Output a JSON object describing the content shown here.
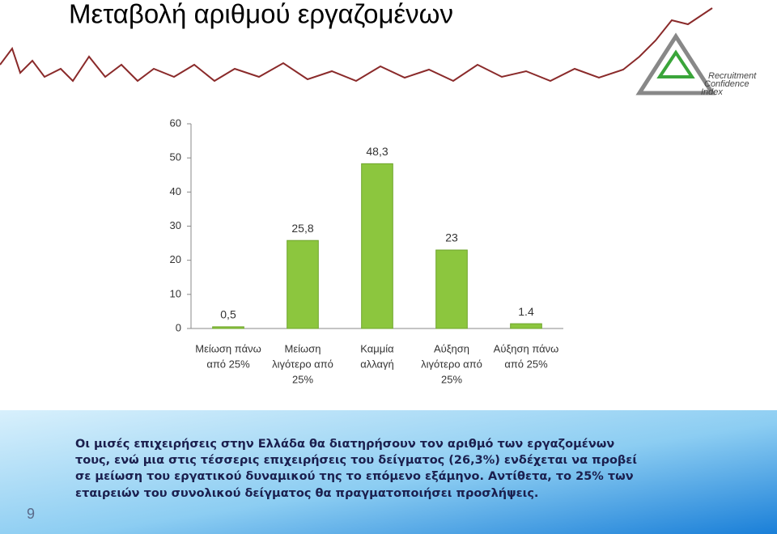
{
  "slide": {
    "title": "Μεταβολή αριθμού εργαζομένων",
    "logo": [
      "Recruitment",
      "Confidence",
      "Index"
    ],
    "text": [
      "Οι μισές επιχειρήσεις στην Ελλάδα θα διατηρήσουν τον αριθμό των εργαζομένων",
      "τους, ενώ μια στις τέσσερις επιχειρήσεις του δείγματος (26,3%) ενδέχεται να προβεί",
      "σε μείωση του εργατικού δυναμικού της το επόμενο εξάμηνο. Αντίθετα, το 25% των",
      "εταιρειών του συνολικού δείγματος θα πραγματοποιήσει προσλήψεις."
    ],
    "page_number": "9"
  },
  "chart_data": {
    "type": "bar",
    "categories": [
      [
        "Μείωση πάνω",
        "από 25%"
      ],
      [
        "Μείωση",
        "λιγότερο από",
        "25%"
      ],
      [
        "Καμμία",
        "αλλαγή"
      ],
      [
        "Αύξηση",
        "λιγότερο από",
        "25%"
      ],
      [
        "Αύξηση πάνω",
        "από 25%"
      ]
    ],
    "values": [
      0.5,
      25.8,
      48.3,
      23,
      1.4
    ],
    "value_labels": [
      "0,5",
      "25,8",
      "48,3",
      "23",
      "1.4"
    ],
    "color": "#8cc63e",
    "ylim": [
      0,
      60
    ],
    "yticks": [
      0,
      10,
      20,
      30,
      40,
      50,
      60
    ],
    "grid": false
  }
}
